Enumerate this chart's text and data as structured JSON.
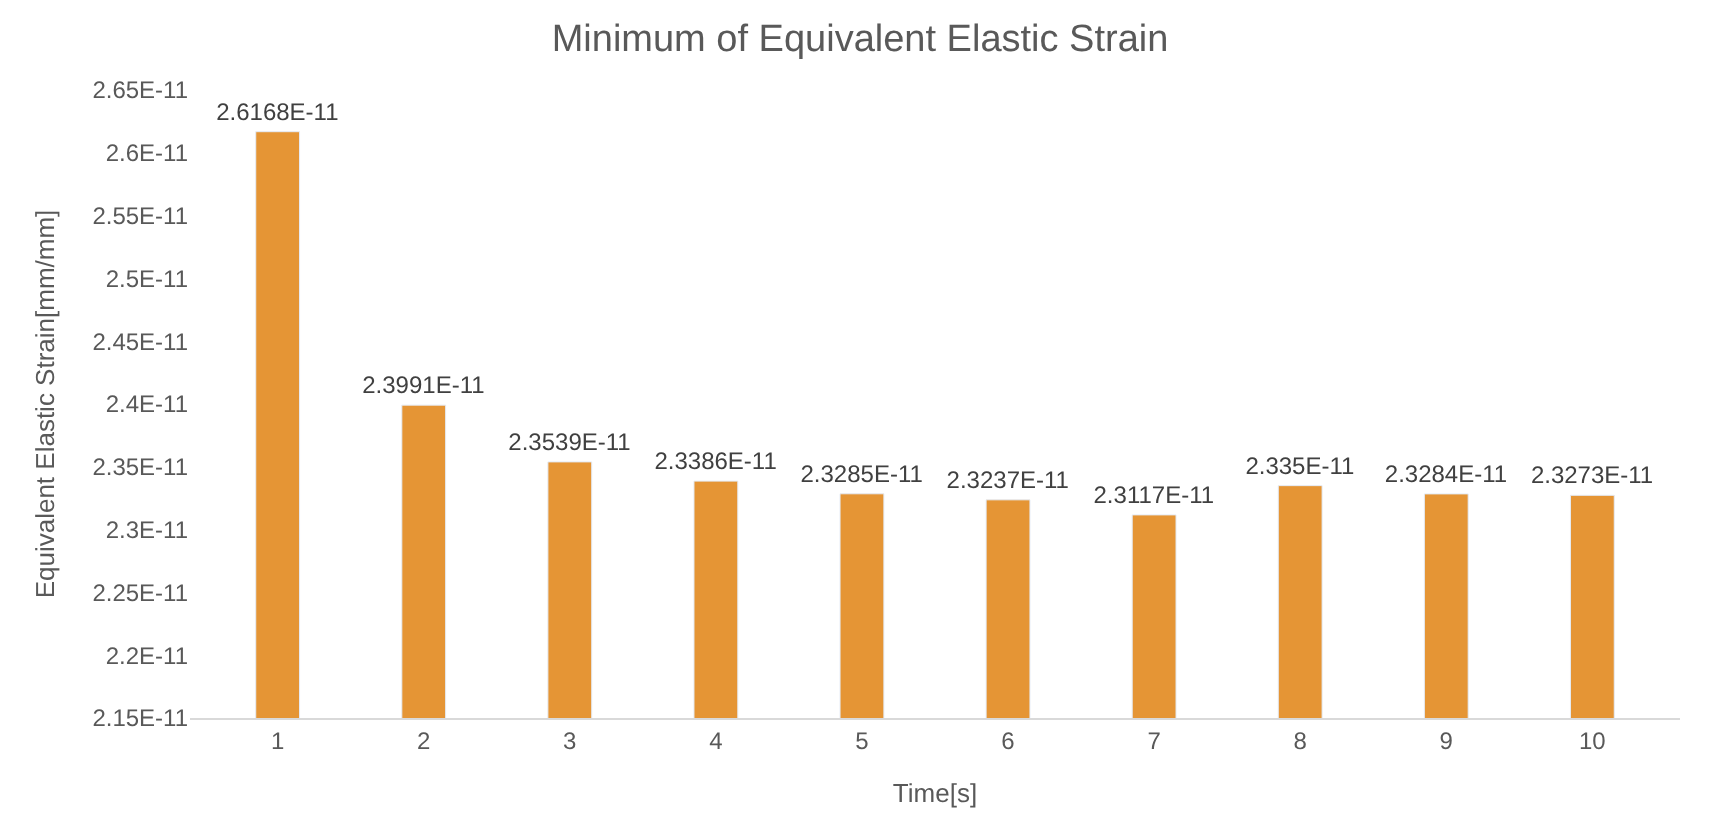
{
  "chart_data": {
    "type": "bar",
    "title": "Minimum of Equivalent Elastic Strain",
    "xlabel": "Time[s]",
    "ylabel": "Equivalent Elastic Strain[mm/mm]",
    "categories": [
      "1",
      "2",
      "3",
      "4",
      "5",
      "6",
      "7",
      "8",
      "9",
      "10"
    ],
    "values": [
      2.6168e-11,
      2.3991e-11,
      2.3539e-11,
      2.3386e-11,
      2.3285e-11,
      2.3237e-11,
      2.3117e-11,
      2.335e-11,
      2.3284e-11,
      2.3273e-11
    ],
    "value_labels": [
      "2.6168E-11",
      "2.3991E-11",
      "2.3539E-11",
      "2.3386E-11",
      "2.3285E-11",
      "2.3237E-11",
      "2.3117E-11",
      "2.335E-11",
      "2.3284E-11",
      "2.3273E-11"
    ],
    "color": "#e59535",
    "ylim": [
      2.15e-11,
      2.65e-11
    ],
    "yticks": [
      {
        "value": 2.15e-11,
        "label": "2.15E-11"
      },
      {
        "value": 2.2e-11,
        "label": "2.2E-11"
      },
      {
        "value": 2.25e-11,
        "label": "2.25E-11"
      },
      {
        "value": 2.3e-11,
        "label": "2.3E-11"
      },
      {
        "value": 2.35e-11,
        "label": "2.35E-11"
      },
      {
        "value": 2.4e-11,
        "label": "2.4E-11"
      },
      {
        "value": 2.45e-11,
        "label": "2.45E-11"
      },
      {
        "value": 2.5e-11,
        "label": "2.5E-11"
      },
      {
        "value": 2.55e-11,
        "label": "2.55E-11"
      },
      {
        "value": 2.6e-11,
        "label": "2.6E-11"
      },
      {
        "value": 2.65e-11,
        "label": "2.65E-11"
      }
    ],
    "legend": false
  }
}
